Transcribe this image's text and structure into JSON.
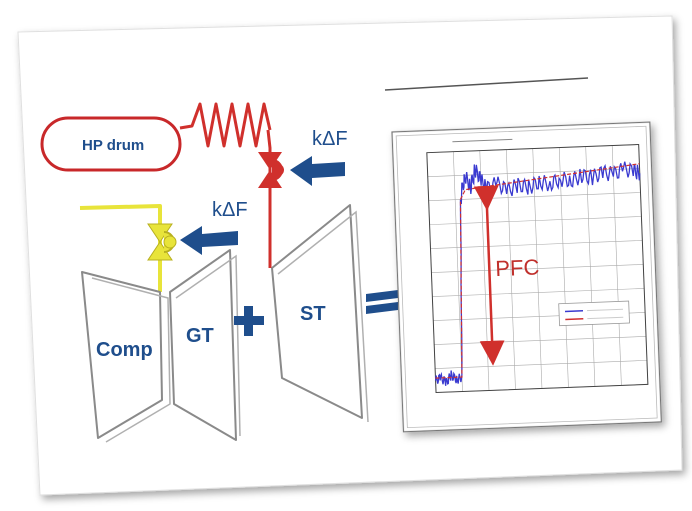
{
  "labels": {
    "hp_drum": "HP drum",
    "k_delta_f_steam": "kΔF",
    "k_delta_f_gas": "kΔF",
    "comp": "Comp",
    "gt": "GT",
    "st": "ST",
    "pfc": "PFC"
  },
  "colors": {
    "steam_line": "#d0302c",
    "fuel_line": "#e8e43a",
    "text_blue": "#1f4e8c",
    "arrow_blue": "#1f4e8c",
    "chart_blue": "#3a3ad0",
    "chart_red": "#d03030"
  },
  "chart_data": {
    "type": "line",
    "xlim": [
      -50,
      350
    ],
    "ylim": [
      0,
      100
    ],
    "series": [
      {
        "x": [
          -50,
          -40,
          -30,
          -20,
          -10,
          0,
          10,
          20,
          30,
          40,
          50,
          60,
          80,
          100,
          120,
          140,
          160,
          180,
          200,
          220,
          240,
          260,
          280,
          300,
          320,
          340,
          350
        ],
        "values": [
          5,
          6,
          4,
          7,
          5,
          6,
          80,
          90,
          85,
          92,
          88,
          84,
          86,
          83,
          85,
          84,
          86,
          85,
          87,
          86,
          88,
          87,
          89,
          88,
          90,
          89,
          88
        ]
      },
      {
        "x": [
          -50,
          0,
          10,
          20,
          350
        ],
        "values": [
          6,
          6,
          80,
          84,
          92
        ]
      }
    ]
  }
}
